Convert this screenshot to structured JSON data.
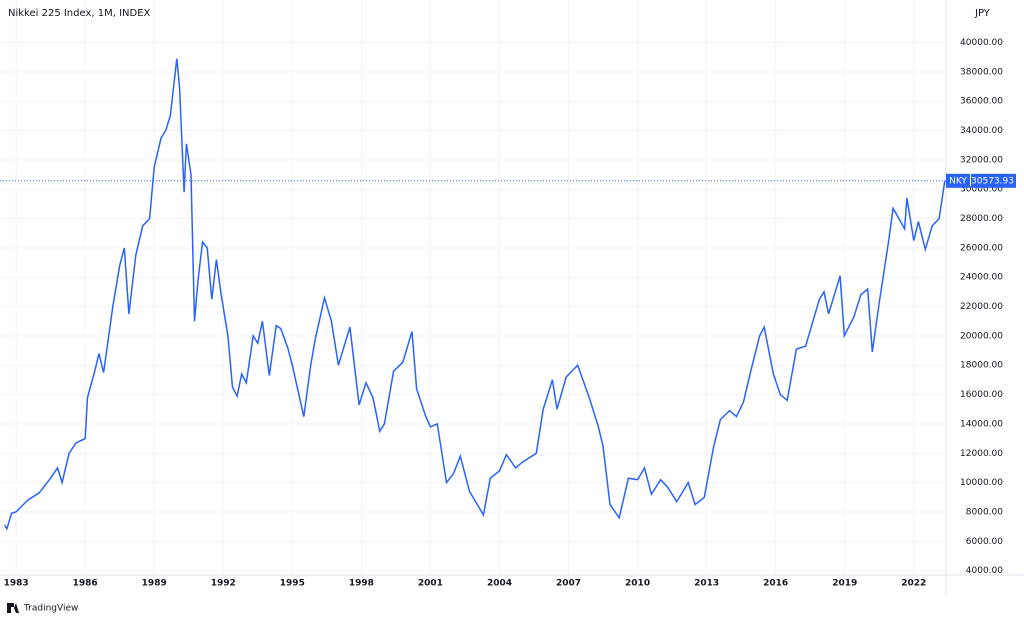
{
  "chart_data": {
    "type": "line",
    "title": "Nikkei 225 Index, 1M, INDEX",
    "currency": "JPY",
    "brand": "TradingView",
    "symbol": "NKY",
    "last_value": 30573.93,
    "grid": true,
    "xlim": [
      1982.3,
      2023.4
    ],
    "ylim": [
      3700,
      42900
    ],
    "xticks": [
      1983,
      1986,
      1989,
      1992,
      1995,
      1998,
      2001,
      2004,
      2007,
      2010,
      2013,
      2016,
      2019,
      2022
    ],
    "yticks": [
      {
        "value": 4000,
        "label": "4000.00"
      },
      {
        "value": 6000,
        "label": "6000.00"
      },
      {
        "value": 8000,
        "label": "8000.00"
      },
      {
        "value": 10000,
        "label": "10000.00"
      },
      {
        "value": 12000,
        "label": "12000.00"
      },
      {
        "value": 14000,
        "label": "14000.00"
      },
      {
        "value": 16000,
        "label": "16000.00"
      },
      {
        "value": 18000,
        "label": "18000.00"
      },
      {
        "value": 20000,
        "label": "20000.00"
      },
      {
        "value": 22000,
        "label": "22000.00"
      },
      {
        "value": 24000,
        "label": "24000.00"
      },
      {
        "value": 26000,
        "label": "26000.00"
      },
      {
        "value": 28000,
        "label": "28000.00"
      },
      {
        "value": 30000,
        "label": "30000.00"
      },
      {
        "value": 32000,
        "label": "32000.00"
      },
      {
        "value": 34000,
        "label": "34000.00"
      },
      {
        "value": 36000,
        "label": "36000.00"
      },
      {
        "value": 38000,
        "label": "38000.00"
      },
      {
        "value": 40000,
        "label": "40000.00"
      }
    ],
    "series": [
      {
        "name": "NKY",
        "color": "#2962ff",
        "x": [
          1982.5,
          1982.6,
          1982.8,
          1983.0,
          1983.5,
          1984.0,
          1984.5,
          1984.8,
          1985.0,
          1985.3,
          1985.6,
          1986.0,
          1986.1,
          1986.4,
          1986.6,
          1986.8,
          1987.2,
          1987.5,
          1987.7,
          1987.9,
          1988.2,
          1988.5,
          1988.8,
          1989.0,
          1989.3,
          1989.5,
          1989.7,
          1989.98,
          1990.1,
          1990.3,
          1990.4,
          1990.6,
          1990.75,
          1990.9,
          1991.1,
          1991.3,
          1991.5,
          1991.7,
          1991.9,
          1992.2,
          1992.4,
          1992.6,
          1992.8,
          1993.0,
          1993.3,
          1993.5,
          1993.7,
          1994.0,
          1994.3,
          1994.5,
          1994.8,
          1995.0,
          1995.5,
          1995.8,
          1996.0,
          1996.4,
          1996.7,
          1997.0,
          1997.5,
          1997.9,
          1998.2,
          1998.5,
          1998.8,
          1999.0,
          1999.4,
          1999.8,
          2000.2,
          2000.4,
          2000.8,
          2001.0,
          2001.3,
          2001.7,
          2002.0,
          2002.3,
          2002.7,
          2003.0,
          2003.3,
          2003.6,
          2004.0,
          2004.3,
          2004.7,
          2005.0,
          2005.6,
          2005.9,
          2006.3,
          2006.5,
          2006.9,
          2007.4,
          2007.9,
          2008.3,
          2008.5,
          2008.8,
          2009.2,
          2009.6,
          2010.0,
          2010.3,
          2010.6,
          2011.0,
          2011.3,
          2011.7,
          2012.2,
          2012.5,
          2012.9,
          2013.3,
          2013.6,
          2014.0,
          2014.3,
          2014.6,
          2014.9,
          2015.3,
          2015.5,
          2015.9,
          2016.2,
          2016.5,
          2016.9,
          2017.3,
          2017.9,
          2018.1,
          2018.3,
          2018.8,
          2018.98,
          2019.4,
          2019.7,
          2020.0,
          2020.2,
          2020.5,
          2020.9,
          2021.1,
          2021.6,
          2021.7,
          2022.0,
          2022.2,
          2022.5,
          2022.8,
          2023.1,
          2023.35
        ],
        "values": [
          7100,
          6850,
          7900,
          8000,
          8800,
          9300,
          10300,
          11000,
          10000,
          12000,
          12700,
          13000,
          15800,
          17500,
          18800,
          17500,
          22000,
          24800,
          26000,
          21500,
          25500,
          27500,
          28000,
          31500,
          33500,
          34000,
          35000,
          38900,
          37000,
          29800,
          33100,
          31000,
          21000,
          23700,
          26400,
          26000,
          22500,
          25200,
          22900,
          20000,
          16500,
          15900,
          17400,
          16800,
          20000,
          19500,
          21000,
          17300,
          20700,
          20500,
          19200,
          18000,
          14500,
          18000,
          19800,
          22600,
          21000,
          18000,
          20600,
          15300,
          16800,
          15800,
          13500,
          14000,
          17600,
          18200,
          20300,
          16400,
          14500,
          13800,
          14000,
          10000,
          10600,
          11800,
          9400,
          8600,
          7800,
          10300,
          10800,
          11900,
          11000,
          11400,
          12000,
          15000,
          17000,
          15000,
          17200,
          18000,
          15800,
          13800,
          12500,
          8500,
          7600,
          10300,
          10200,
          11000,
          9200,
          10200,
          9700,
          8700,
          10000,
          8500,
          9000,
          12400,
          14300,
          14900,
          14500,
          15500,
          17500,
          20000,
          20600,
          17400,
          16000,
          15600,
          19100,
          19300,
          22500,
          23000,
          21500,
          24100,
          20000,
          21300,
          22800,
          23200,
          18900,
          22300,
          26400,
          28700,
          27300,
          29400,
          26500,
          27800,
          25900,
          27500,
          28000,
          30573.93
        ]
      }
    ]
  }
}
